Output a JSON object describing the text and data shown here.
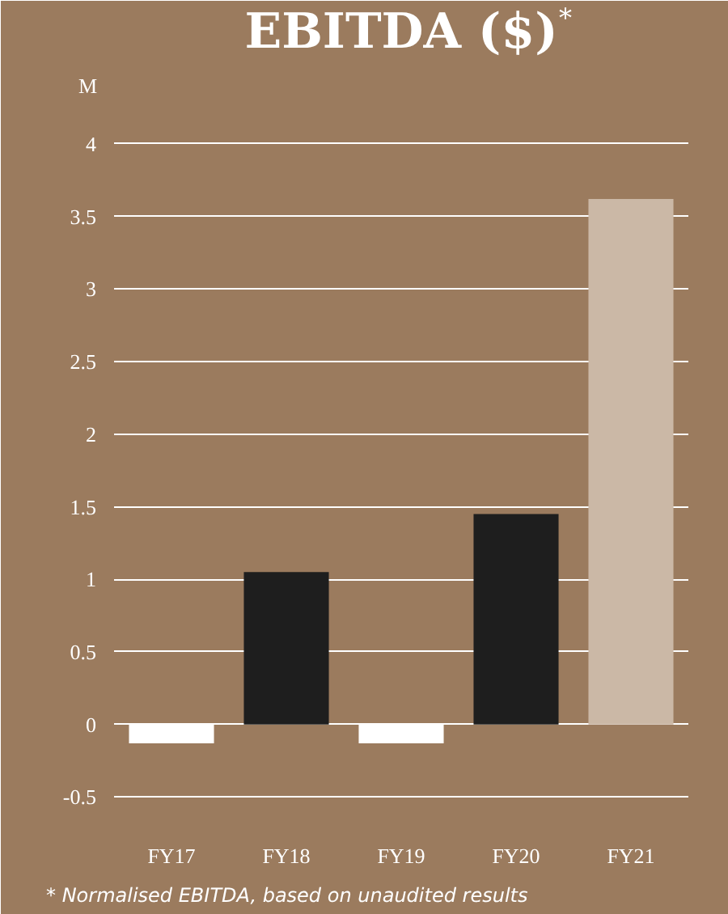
{
  "chart_data": {
    "type": "bar",
    "title": "EBITDA ($)$^{*}$",
    "ylabel": "M",
    "categories": [
      "FY17",
      "FY18",
      "FY19",
      "FY20",
      "FY21"
    ],
    "values": [
      -0.13,
      1.05,
      -0.13,
      1.45,
      3.62
    ],
    "colors": [
      "#ffffff",
      "#1e1e1e",
      "#ffffff",
      "#1e1e1e",
      "#cbb8a6"
    ],
    "ylim": [
      -0.62,
      4.25
    ],
    "yticks": [
      -0.5,
      0,
      0.5,
      1,
      1.5,
      2,
      2.5,
      3,
      3.5,
      4
    ],
    "grid": "y",
    "annotations": [
      "* Normalised EBITDA, based on unaudited results"
    ]
  }
}
